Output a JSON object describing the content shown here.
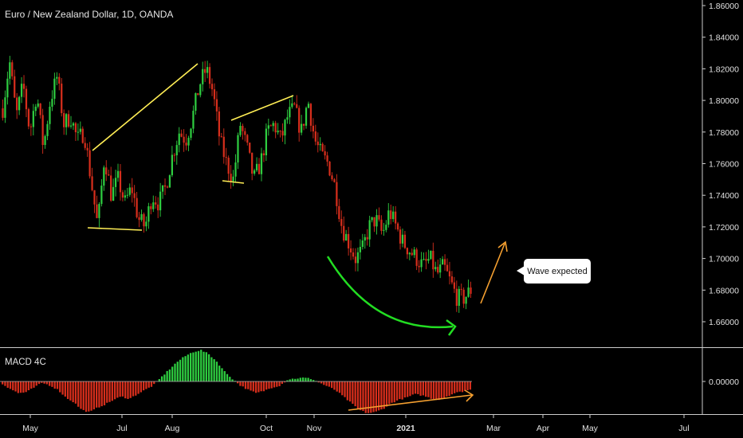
{
  "title": "Euro / New Zealand Dollar, 1D, OANDA",
  "macd_title": "MACD 4C",
  "callout": "Wave expected",
  "colors": {
    "up": "#2ecc40",
    "down": "#d62e1c",
    "annotation_yellow": "#ffee55",
    "annotation_green": "#22dd22",
    "annotation_orange": "#f5a030",
    "grid_line": "#cccccc"
  },
  "chart_data": [
    {
      "type": "candlestick",
      "title": "Euro / New Zealand Dollar, 1D, OANDA",
      "x_ticks": [
        "May",
        "Jul",
        "Aug",
        "Oct",
        "Nov",
        "2021",
        "Mar",
        "Apr",
        "May",
        "Jul"
      ],
      "y_ticks": [
        "1.86000",
        "1.84000",
        "1.82000",
        "1.80000",
        "1.78000",
        "1.76000",
        "1.74000",
        "1.72000",
        "1.70000",
        "1.68000",
        "1.66000"
      ],
      "ylim": [
        1.645,
        1.862
      ],
      "close_path": [
        1.795,
        1.825,
        1.79,
        1.81,
        1.78,
        1.805,
        1.77,
        1.8,
        1.815,
        1.785,
        1.79,
        1.775,
        1.78,
        1.75,
        1.72,
        1.765,
        1.74,
        1.75,
        1.735,
        1.745,
        1.725,
        1.72,
        1.74,
        1.735,
        1.745,
        1.765,
        1.78,
        1.775,
        1.79,
        1.81,
        1.82,
        1.805,
        1.775,
        1.76,
        1.75,
        1.785,
        1.77,
        1.75,
        1.76,
        1.78,
        1.785,
        1.775,
        1.79,
        1.795,
        1.78,
        1.8,
        1.775,
        1.765,
        1.76,
        1.745,
        1.72,
        1.71,
        1.7,
        1.705,
        1.72,
        1.725,
        1.715,
        1.73,
        1.72,
        1.71,
        1.705,
        1.7,
        1.695,
        1.7,
        1.69,
        1.695,
        1.685,
        1.675,
        1.675,
        1.68
      ],
      "annotations": [
        "yellow trend lines",
        "green curved arrow",
        "orange expected-wave arrow"
      ]
    },
    {
      "type": "bar",
      "title": "MACD 4C",
      "y_ticks": [
        "0.00000"
      ],
      "ylim": [
        -0.012,
        0.012
      ],
      "values": [
        -0.0008,
        -0.0022,
        -0.0035,
        -0.0032,
        -0.0018,
        -0.0004,
        -0.0012,
        -0.0025,
        -0.0048,
        -0.0062,
        -0.0085,
        -0.0092,
        -0.0078,
        -0.0068,
        -0.0055,
        -0.0045,
        -0.0052,
        -0.0038,
        -0.0025,
        -0.0012,
        0.0012,
        0.0035,
        0.0058,
        0.0075,
        0.0088,
        0.0094,
        0.0082,
        0.006,
        0.003,
        0.0008,
        -0.0012,
        -0.0025,
        -0.0035,
        -0.0028,
        -0.0018,
        -0.0012,
        0.0006,
        0.0009,
        0.0011,
        0.0008,
        -0.0004,
        -0.0015,
        -0.0026,
        -0.0045,
        -0.0065,
        -0.0085,
        -0.0095,
        -0.0092,
        -0.0082,
        -0.0065,
        -0.0055,
        -0.0048,
        -0.0038,
        -0.0042,
        -0.005,
        -0.0055,
        -0.0045,
        -0.0035,
        -0.003,
        -0.0025
      ]
    }
  ]
}
